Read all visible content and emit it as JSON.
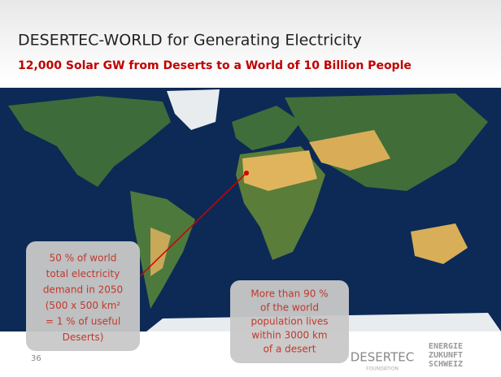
{
  "header": {
    "title": "DESERTEC-WORLD for Generating Electricity",
    "subtitle": "12,000 Solar GW from Deserts to a World of 10 Billion People"
  },
  "callouts": [
    {
      "lines": [
        "50 % of world",
        "total electricity",
        "demand in 2050",
        "(500 x 500 km²",
        "= 1 % of useful",
        "Deserts)"
      ]
    },
    {
      "lines": [
        "More than 90 %",
        "of the world",
        "population lives",
        "within 3000 km",
        "of a desert"
      ]
    }
  ],
  "footer": {
    "page_number": "36",
    "logo_1": "DESERTEC",
    "logo_1_sub": "FOUNDATION",
    "logo_2": [
      "ENERGIE",
      "ZUKUNFT",
      "SCHWEIZ"
    ]
  }
}
